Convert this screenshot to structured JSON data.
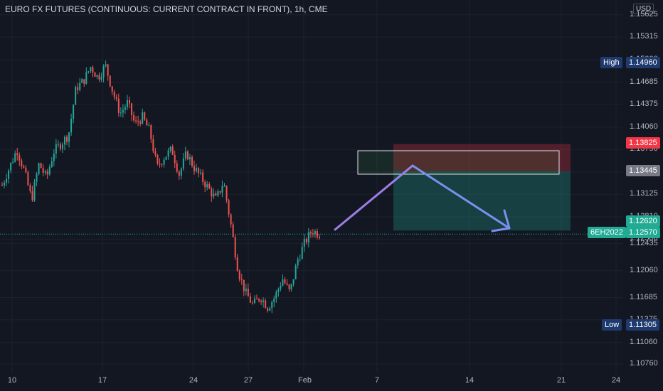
{
  "title": "EURO FX FUTURES (CONTINUOUS: CURRENT CONTRACT IN FRONT), 1h, CME",
  "currency_button": "USD",
  "colors": {
    "background": "#131722",
    "grid": "#1e222d",
    "up": "#26a69a",
    "down": "#ef5350",
    "tick_text": "#b2b5be",
    "arrow_up": "#9c7ee6",
    "arrow_down": "#7b8ff0",
    "high_badge": "#1e3a6e",
    "stop_badge": "#f23645",
    "entry_badge": "#787b86",
    "target_badge": "#22ab94"
  },
  "chart_data": {
    "type": "candlestick",
    "symbol": "6EH2022",
    "timeframe": "1h",
    "exchange": "CME",
    "y_ticks": [
      1.15625,
      1.15315,
      1.15,
      1.14685,
      1.14375,
      1.1406,
      1.1375,
      1.13435,
      1.13125,
      1.1281,
      1.125,
      1.12435,
      1.1206,
      1.11685,
      1.11375,
      1.1106,
      1.1076
    ],
    "y_tick_labels": [
      "1.15625",
      "1.15315",
      "1.15000",
      "1.14685",
      "1.14375",
      "1.14060",
      "1.13750",
      "1.13435",
      "1.13125",
      "1.12810",
      "1.12500",
      "1.12435",
      "1.12060",
      "1.11685",
      "1.11375",
      "1.11060",
      "1.10760"
    ],
    "visible_y_tick_labels": [
      "1.15315",
      "1.14685",
      "1.14375",
      "1.14060",
      "1.13125",
      "1.12435",
      "1.12060",
      "1.11685",
      "1.11060",
      "1.10760"
    ],
    "x_ticks": [
      "10",
      "17",
      "24",
      "27",
      "Feb",
      "7",
      "14",
      "21",
      "24"
    ],
    "ylim": [
      1.105,
      1.16
    ],
    "price_path": [
      [
        0,
        1.1325
      ],
      [
        2,
        1.1375
      ],
      [
        3,
        1.1345
      ],
      [
        4,
        1.1305
      ],
      [
        5,
        1.1355
      ],
      [
        6,
        1.1335
      ],
      [
        7,
        1.1372
      ],
      [
        9,
        1.1395
      ],
      [
        10,
        1.146
      ],
      [
        11,
        1.147
      ],
      [
        12,
        1.149
      ],
      [
        13,
        1.1475
      ],
      [
        14,
        1.1492
      ],
      [
        15,
        1.1455
      ],
      [
        16,
        1.1425
      ],
      [
        17,
        1.144
      ],
      [
        18,
        1.141
      ],
      [
        19,
        1.142
      ],
      [
        20,
        1.14
      ],
      [
        21,
        1.135
      ],
      [
        22,
        1.1365
      ],
      [
        23,
        1.1375
      ],
      [
        24,
        1.134
      ],
      [
        25,
        1.137
      ],
      [
        26,
        1.135
      ],
      [
        27,
        1.1335
      ],
      [
        28,
        1.132
      ],
      [
        29,
        1.1305
      ],
      [
        30,
        1.133
      ],
      [
        31,
        1.127
      ],
      [
        32,
        1.1205
      ],
      [
        33,
        1.1175
      ],
      [
        34,
        1.1158
      ],
      [
        35,
        1.117
      ],
      [
        36,
        1.1155
      ],
      [
        37,
        1.117
      ],
      [
        38,
        1.1195
      ],
      [
        39,
        1.1175
      ],
      [
        40,
        1.122
      ],
      [
        41,
        1.1245
      ],
      [
        42,
        1.1262
      ],
      [
        43,
        1.1257
      ]
    ],
    "high": {
      "label": "High",
      "value": "1.14960"
    },
    "low": {
      "label": "Low",
      "value": "1.11305"
    },
    "last": {
      "label": "6EH2022",
      "value": "1.12570"
    },
    "position": {
      "type": "short",
      "stop": "1.13825",
      "entry": "1.13445",
      "target": "1.12620"
    }
  }
}
